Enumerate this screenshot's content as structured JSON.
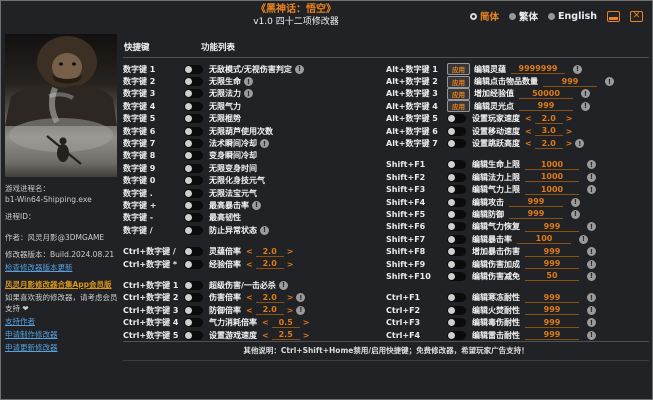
{
  "colors": {
    "background": "#212226",
    "accent_orange": "#e8831d",
    "value_orange": "#de7b18",
    "link_blue": "#55a0dd",
    "link_orange": "#d9961c",
    "toggle_knob": "#cfcfcf",
    "warning_gray": "#9b9b9b"
  },
  "window": {
    "title": "《黑神话：悟空》",
    "subtitle": "v1.0 四十二项修改器",
    "languages": [
      {
        "label": "简体",
        "selected": true
      },
      {
        "label": "繁体",
        "selected": false
      },
      {
        "label": "English",
        "selected": false
      }
    ],
    "close_glyph": "✕"
  },
  "sidebar": {
    "cover_alt": "黑神话悟空封面图",
    "process_name_label": "游戏进程名：",
    "process_name": "b1-Win64-Shipping.exe",
    "process_id_label": "进程ID：",
    "author": "作者：风灵月影@3DMGAME",
    "version": "修改器版本：Build.2024.08.21",
    "links": [
      {
        "label": "检查修改器版本更新",
        "style": "blue"
      },
      {
        "label": "风灵月影修改器合集App会员版",
        "style": "orange"
      },
      {
        "label": "如果喜欢我的修改器，请考虑会员支持 ❤",
        "style": "plain"
      },
      {
        "label": "支持作者",
        "style": "blue"
      },
      {
        "label": "申请制作修改器",
        "style": "blue"
      },
      {
        "label": "申请更新修改器",
        "style": "blue"
      }
    ]
  },
  "table": {
    "hotkey_header": "快捷键",
    "function_header": "功能列表",
    "apply_label": "应用",
    "left_groups": [
      [
        {
          "hotkey": "数字键 1",
          "control": "toggle",
          "label": "无敌模式/无视伤害判定",
          "warning": true
        },
        {
          "hotkey": "数字键 2",
          "control": "toggle",
          "label": "无限生命",
          "warning": true
        },
        {
          "hotkey": "数字键 3",
          "control": "toggle",
          "label": "无限法力",
          "warning": true
        },
        {
          "hotkey": "数字键 4",
          "control": "toggle",
          "label": "无限气力",
          "warning": false
        },
        {
          "hotkey": "数字键 5",
          "control": "toggle",
          "label": "无限棍势",
          "warning": false
        },
        {
          "hotkey": "数字键 6",
          "control": "toggle",
          "label": "无限葫芦使用次数",
          "warning": false
        },
        {
          "hotkey": "数字键 7",
          "control": "toggle",
          "label": "法术瞬间冷却",
          "warning": true
        },
        {
          "hotkey": "数字键 8",
          "control": "toggle",
          "label": "变身瞬间冷却",
          "warning": false
        },
        {
          "hotkey": "数字键 9",
          "control": "toggle",
          "label": "无限变身时间",
          "warning": false
        },
        {
          "hotkey": "数字键 0",
          "control": "toggle",
          "label": "无限化身技元气",
          "warning": false
        },
        {
          "hotkey": "数字键 .",
          "control": "toggle",
          "label": "无限法宝元气",
          "warning": false
        },
        {
          "hotkey": "数字键 +",
          "control": "toggle",
          "label": "最高暴击率",
          "warning": true
        },
        {
          "hotkey": "数字键 -",
          "control": "toggle",
          "label": "最高韧性",
          "warning": false
        },
        {
          "hotkey": "数字键 /",
          "control": "toggle",
          "label": "防止异常状态",
          "warning": true
        }
      ],
      [
        {
          "hotkey": "Ctrl+数字键 /",
          "control": "toggle",
          "label": "灵蕴倍率",
          "stepper": "2.0",
          "warning": false
        },
        {
          "hotkey": "Ctrl+数字键 *",
          "control": "toggle",
          "label": "经验倍率",
          "stepper": "2.0",
          "warning": false
        }
      ],
      [
        {
          "hotkey": "Ctrl+数字键 1",
          "control": "toggle",
          "label": "超级伤害/一击必杀",
          "warning": true
        },
        {
          "hotkey": "Ctrl+数字键 2",
          "control": "toggle",
          "label": "伤害倍率",
          "stepper": "2.0",
          "warning": true
        },
        {
          "hotkey": "Ctrl+数字键 3",
          "control": "toggle",
          "label": "防御倍率",
          "stepper": "2.0",
          "warning": true
        },
        {
          "hotkey": "Ctrl+数字键 4",
          "control": "toggle",
          "label": "气力消耗倍率",
          "stepper": "0.5",
          "warning": false
        },
        {
          "hotkey": "Ctrl+数字键 5",
          "control": "toggle",
          "label": "设置游戏速度",
          "stepper": "2.5",
          "warning": false
        }
      ]
    ],
    "right_groups": [
      [
        {
          "hotkey": "Alt+数字键 1",
          "control": "apply",
          "label": "编辑灵蕴",
          "value": "9999999",
          "warning": true
        },
        {
          "hotkey": "Alt+数字键 2",
          "control": "apply",
          "label": "编辑点击物品数量",
          "value": "999",
          "warning": true
        },
        {
          "hotkey": "Alt+数字键 3",
          "control": "apply",
          "label": "增加经验值",
          "value": "50000",
          "warning": true
        },
        {
          "hotkey": "Alt+数字键 4",
          "control": "apply",
          "label": "编辑灵光点",
          "value": "999",
          "warning": true
        },
        {
          "hotkey": "Alt+数字键 5",
          "control": "toggle",
          "label": "设置玩家速度",
          "stepper": "2.0",
          "warning": false
        },
        {
          "hotkey": "Alt+数字键 6",
          "control": "toggle",
          "label": "设置移动速度",
          "stepper": "3.0",
          "warning": false
        },
        {
          "hotkey": "Alt+数字键 7",
          "control": "toggle",
          "label": "设置跳跃高度",
          "stepper": "2.0",
          "warning": true
        }
      ],
      [
        {
          "hotkey": "Shift+F1",
          "control": "toggle",
          "label": "编辑生命上限",
          "value": "1000",
          "warning": true
        },
        {
          "hotkey": "Shift+F2",
          "control": "toggle",
          "label": "编辑法力上限",
          "value": "1000",
          "warning": true
        },
        {
          "hotkey": "Shift+F3",
          "control": "toggle",
          "label": "编辑气力上限",
          "value": "1000",
          "warning": true
        },
        {
          "hotkey": "Shift+F4",
          "control": "toggle",
          "label": "编辑攻击",
          "value": "999",
          "warning": true
        },
        {
          "hotkey": "Shift+F5",
          "control": "toggle",
          "label": "编辑防御",
          "value": "999",
          "warning": true
        },
        {
          "hotkey": "Shift+F6",
          "control": "toggle",
          "label": "编辑气力恢复",
          "value": "999",
          "warning": true
        },
        {
          "hotkey": "Shift+F7",
          "control": "toggle",
          "label": "编辑暴击率",
          "value": "100",
          "warning": true
        },
        {
          "hotkey": "Shift+F8",
          "control": "toggle",
          "label": "增加暴击伤害",
          "value": "999",
          "warning": true
        },
        {
          "hotkey": "Shift+F9",
          "control": "toggle",
          "label": "编辑伤害加成",
          "value": "999",
          "warning": true
        },
        {
          "hotkey": "Shift+F10",
          "control": "toggle",
          "label": "编辑伤害减免",
          "value": "50",
          "warning": true
        }
      ],
      [
        {
          "hotkey": "Ctrl+F1",
          "control": "toggle",
          "label": "编辑寒冻耐性",
          "value": "999",
          "warning": true
        },
        {
          "hotkey": "Ctrl+F2",
          "control": "toggle",
          "label": "编辑火焚耐性",
          "value": "999",
          "warning": true
        },
        {
          "hotkey": "Ctrl+F3",
          "control": "toggle",
          "label": "编辑毒伤耐性",
          "value": "999",
          "warning": true
        },
        {
          "hotkey": "Ctrl+F4",
          "control": "toggle",
          "label": "编辑雷击耐性",
          "value": "999",
          "warning": true
        }
      ]
    ]
  },
  "footer": {
    "note": "其他说明：Ctrl+Shift+Home禁用/启用快捷键；免费修改器，希望玩家广告支持！"
  }
}
